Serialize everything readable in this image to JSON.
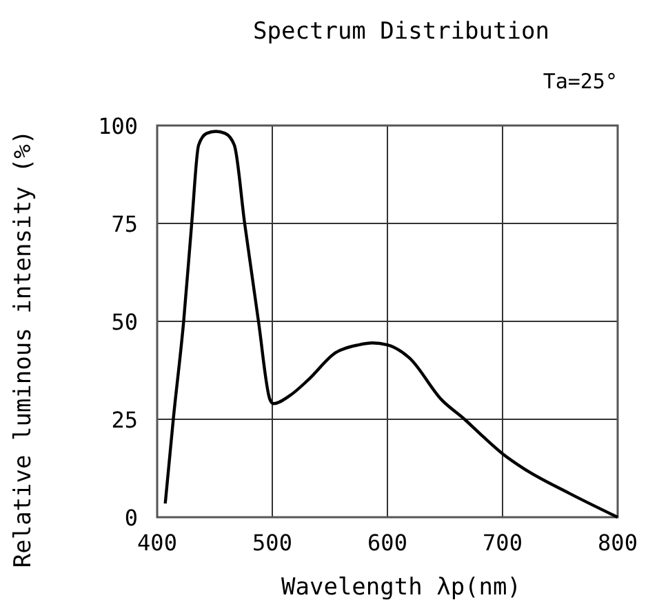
{
  "chart_data": {
    "type": "line",
    "title": "Spectrum Distribution",
    "xlabel": "Wavelength λp(nm)",
    "ylabel": "Relative luminous intensity (%)",
    "annotations": [
      "Ta=25°"
    ],
    "x": [
      407,
      414,
      423,
      430,
      436,
      443,
      451,
      459,
      467,
      476,
      488,
      498,
      501,
      515,
      531,
      555,
      575,
      587,
      600,
      619,
      647,
      667,
      683,
      700,
      719,
      758,
      800
    ],
    "series": [
      {
        "color": "#000000",
        "values": [
          3.5,
          25,
          50,
          75,
          95,
          98,
          98.5,
          98,
          95,
          75,
          50,
          30,
          29,
          31,
          35,
          42,
          44,
          44.5,
          44,
          40.7,
          30,
          25,
          20.6,
          16.2,
          12.3,
          6.1,
          0
        ]
      }
    ],
    "xlim": [
      400,
      800
    ],
    "ylim": [
      0,
      100
    ],
    "xticks": [
      400,
      500,
      600,
      700,
      800
    ],
    "yticks": [
      0,
      25,
      50,
      75,
      100
    ],
    "grid": true,
    "marker": "none",
    "line_style": "solid"
  }
}
